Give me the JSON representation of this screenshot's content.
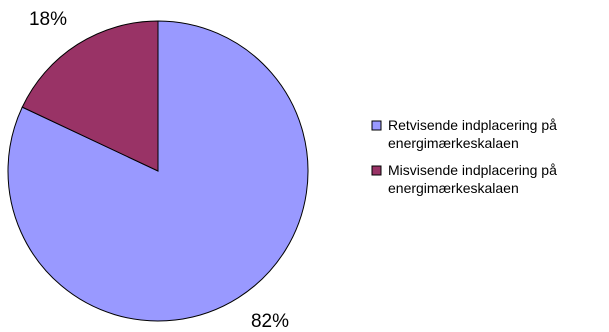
{
  "chart_data": {
    "type": "pie",
    "slices": [
      {
        "legend_lines": [
          "Retvisende indplacering på",
          "energimærkeskalaen"
        ],
        "value": 82,
        "label": "82%",
        "color": "#9999ff"
      },
      {
        "legend_lines": [
          "Misvisende indplacering på",
          "energimærkeskalaen"
        ],
        "value": 18,
        "label": "18%",
        "color": "#993366"
      }
    ],
    "start_angle": "12 o'clock",
    "direction": "clockwise",
    "legend_placement": "right"
  }
}
